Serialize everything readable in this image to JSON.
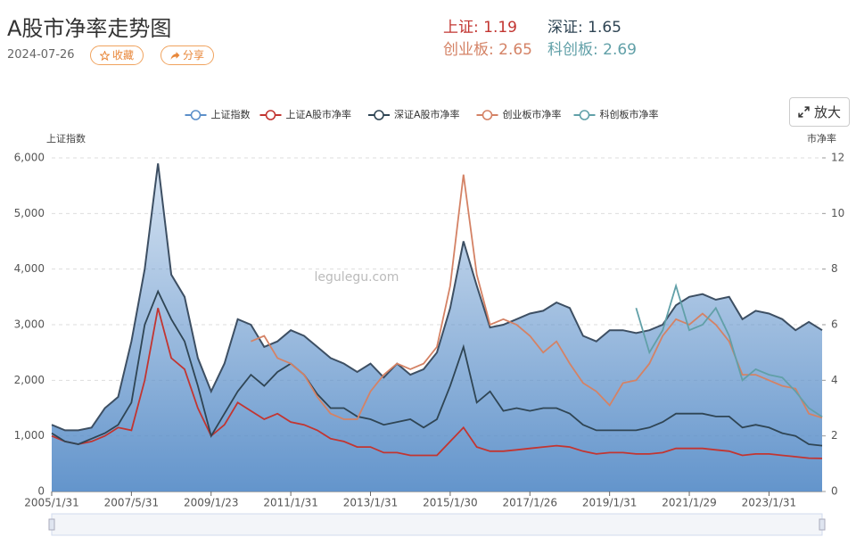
{
  "header": {
    "title": "A股市净率走势图",
    "date": "2024-07-26",
    "buttons": [
      "收藏",
      "分享"
    ],
    "zoom": "放大",
    "stats": [
      {
        "text": "上证: 1.19",
        "color": "#c23531"
      },
      {
        "text": "深证: 1.65",
        "color": "#2f4554"
      },
      {
        "text": "创业板: 2.65",
        "color": "#d48265"
      },
      {
        "text": "科创板: 2.69",
        "color": "#61a0a8"
      }
    ]
  },
  "chart_data": {
    "type": "line",
    "watermark": "legulegu.com",
    "ylabel": "上证指数",
    "y2label": "市净率",
    "categories": [
      "2005/1/31",
      null,
      null,
      null,
      null,
      null,
      "2007/5/31",
      null,
      null,
      null,
      null,
      null,
      "2009/1/23",
      null,
      null,
      null,
      null,
      null,
      "2011/1/31",
      null,
      null,
      null,
      null,
      null,
      "2013/1/31",
      null,
      null,
      null,
      null,
      null,
      "2015/1/30",
      null,
      null,
      null,
      null,
      null,
      "2017/1/26",
      null,
      null,
      null,
      null,
      null,
      "2019/1/31",
      null,
      null,
      null,
      null,
      null,
      "2021/1/29",
      null,
      null,
      null,
      null,
      null,
      "2023/1/31",
      null,
      null,
      null,
      null
    ],
    "ylim": [
      0,
      6000
    ],
    "yticks": [
      0,
      {
        "value": 1000,
        "label": "1,000"
      },
      {
        "value": 2000,
        "label": "2,000"
      },
      {
        "value": 3000,
        "label": "3,000"
      },
      {
        "value": 4000,
        "label": "4,000"
      },
      {
        "value": 5000,
        "label": "5,000"
      },
      {
        "value": 6000,
        "label": "6,000"
      }
    ],
    "y2lim": [
      0,
      12
    ],
    "y2ticks": [
      0,
      2,
      4,
      6,
      8,
      10,
      12
    ],
    "grid": true,
    "legend": "top",
    "series": [
      {
        "name": "上证指数",
        "color": "#5b8fc9",
        "area": true,
        "values": [
          1200,
          1100,
          1100,
          1150,
          1500,
          1700,
          2700,
          4000,
          5900,
          3900,
          3500,
          2400,
          1800,
          2300,
          3100,
          3000,
          2600,
          2700,
          2900,
          2800,
          2600,
          2400,
          2300,
          2150,
          2300,
          2050,
          2300,
          2100,
          2200,
          2500,
          3300,
          4500,
          3700,
          2950,
          3000,
          3100,
          3200,
          3250,
          3400,
          3300,
          2800,
          2700,
          2900,
          2900,
          2850,
          2900,
          3000,
          3350,
          3500,
          3550,
          3450,
          3500,
          3100,
          3250,
          3200,
          3100,
          2900,
          3050,
          2900
        ]
      },
      {
        "name": "上证A股市净率",
        "color": "#c23531",
        "axis": "y2",
        "values": [
          2.0,
          1.8,
          1.7,
          1.8,
          2.0,
          2.3,
          2.2,
          4.0,
          6.6,
          4.8,
          4.4,
          3.0,
          2.0,
          2.4,
          3.2,
          2.9,
          2.6,
          2.8,
          2.5,
          2.4,
          2.2,
          1.9,
          1.8,
          1.6,
          1.6,
          1.4,
          1.4,
          1.3,
          1.3,
          1.3,
          1.8,
          2.3,
          1.6,
          1.45,
          1.45,
          1.5,
          1.55,
          1.6,
          1.65,
          1.6,
          1.45,
          1.35,
          1.4,
          1.4,
          1.35,
          1.35,
          1.4,
          1.55,
          1.55,
          1.55,
          1.5,
          1.45,
          1.3,
          1.35,
          1.35,
          1.3,
          1.25,
          1.2,
          1.19
        ]
      },
      {
        "name": "深证A股市净率",
        "color": "#2f4554",
        "axis": "y2",
        "values": [
          2.1,
          1.8,
          1.7,
          1.9,
          2.1,
          2.4,
          3.2,
          6.0,
          7.2,
          6.2,
          5.4,
          3.8,
          2.0,
          2.8,
          3.6,
          4.2,
          3.8,
          4.3,
          4.6,
          4.2,
          3.5,
          3.0,
          3.0,
          2.7,
          2.6,
          2.4,
          2.5,
          2.6,
          2.3,
          2.6,
          3.8,
          5.2,
          3.2,
          3.6,
          2.9,
          3.0,
          2.9,
          3.0,
          3.0,
          2.8,
          2.4,
          2.2,
          2.2,
          2.2,
          2.2,
          2.3,
          2.5,
          2.8,
          2.8,
          2.8,
          2.7,
          2.7,
          2.3,
          2.4,
          2.3,
          2.1,
          2.0,
          1.7,
          1.65
        ]
      },
      {
        "name": "创业板市净率",
        "color": "#d48265",
        "axis": "y2",
        "values": [
          null,
          null,
          null,
          null,
          null,
          null,
          null,
          null,
          null,
          null,
          null,
          null,
          null,
          null,
          null,
          5.4,
          5.6,
          4.8,
          4.6,
          4.2,
          3.4,
          2.8,
          2.6,
          2.6,
          3.6,
          4.2,
          4.6,
          4.4,
          4.6,
          5.2,
          7.4,
          11.4,
          7.8,
          6.0,
          6.2,
          6.0,
          5.6,
          5.0,
          5.4,
          4.6,
          3.9,
          3.6,
          3.1,
          3.9,
          4.0,
          4.6,
          5.6,
          6.2,
          6.0,
          6.4,
          6.0,
          5.4,
          4.2,
          4.2,
          4.0,
          3.8,
          3.7,
          2.8,
          2.65
        ]
      },
      {
        "name": "科创板市净率",
        "color": "#61a0a8",
        "axis": "y2",
        "values": [
          null,
          null,
          null,
          null,
          null,
          null,
          null,
          null,
          null,
          null,
          null,
          null,
          null,
          null,
          null,
          null,
          null,
          null,
          null,
          null,
          null,
          null,
          null,
          null,
          null,
          null,
          null,
          null,
          null,
          null,
          null,
          null,
          null,
          null,
          null,
          null,
          null,
          null,
          null,
          null,
          null,
          null,
          null,
          null,
          6.6,
          5.0,
          5.8,
          7.4,
          5.8,
          6.0,
          6.6,
          5.6,
          4.0,
          4.4,
          4.2,
          4.1,
          3.6,
          3.0,
          2.69
        ]
      }
    ]
  }
}
